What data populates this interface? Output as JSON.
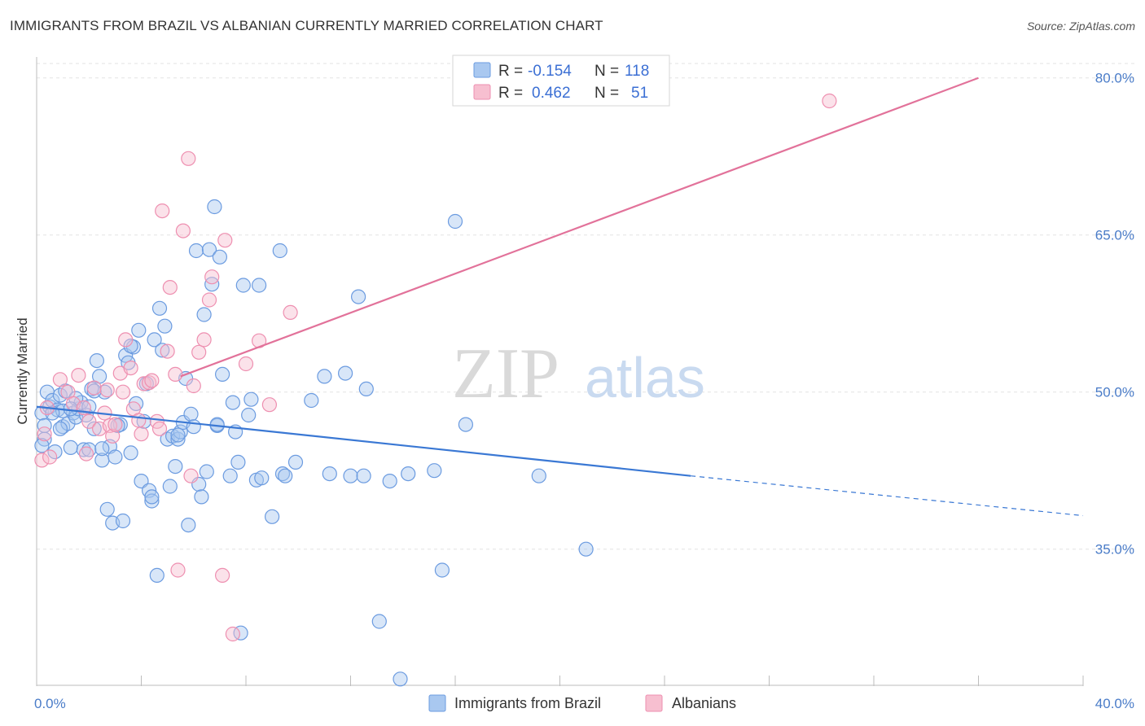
{
  "header": {
    "title": "IMMIGRANTS FROM BRAZIL VS ALBANIAN CURRENTLY MARRIED CORRELATION CHART",
    "source": "Source: ZipAtlas.com"
  },
  "watermark": {
    "part1": "ZIP",
    "part2": "atlas"
  },
  "colors": {
    "blue_fill": "#a9c8f0",
    "blue_stroke": "#6b9be0",
    "blue_line": "#3a78d4",
    "pink_fill": "#f7bfd0",
    "pink_stroke": "#ee8fb0",
    "pink_line": "#e2729a",
    "grid": "#e3e3e3",
    "axis_text": "#4a7cc8"
  },
  "legend_top": {
    "rows": [
      {
        "r_label": "R =",
        "r_value": "-0.154",
        "n_label": "N =",
        "n_value": "118"
      },
      {
        "r_label": "R =",
        "r_value": "0.462",
        "n_label": "N =",
        "n_value": "51"
      }
    ]
  },
  "chart_data": {
    "type": "scatter",
    "title": "IMMIGRANTS FROM BRAZIL VS ALBANIAN CURRENTLY MARRIED CORRELATION CHART",
    "xlabel": "",
    "ylabel": "Currently Married",
    "xlim": [
      0,
      40
    ],
    "ylim": [
      22,
      82
    ],
    "x_tick_labels": [
      "0.0%",
      "40.0%"
    ],
    "y_ticks": [
      35,
      50,
      65,
      80
    ],
    "y_tick_labels": [
      "35.0%",
      "50.0%",
      "65.0%",
      "80.0%"
    ],
    "grid": true,
    "legend_position": "bottom-center",
    "series": [
      {
        "name": "Immigrants from Brazil",
        "color": "#a9c8f0",
        "trend": {
          "x": [
            0,
            25
          ],
          "y": [
            48.6,
            42.0
          ],
          "dashed_to": [
            40,
            38.2
          ]
        },
        "points": [
          [
            0.2,
            48.0
          ],
          [
            0.3,
            45.5
          ],
          [
            0.3,
            46.8
          ],
          [
            0.4,
            50.0
          ],
          [
            0.5,
            48.6
          ],
          [
            0.6,
            49.2
          ],
          [
            0.7,
            44.3
          ],
          [
            0.8,
            48.3
          ],
          [
            0.9,
            49.7
          ],
          [
            1.0,
            46.7
          ],
          [
            1.1,
            50.1
          ],
          [
            1.2,
            47.0
          ],
          [
            1.3,
            44.7
          ],
          [
            1.4,
            48.0
          ],
          [
            1.5,
            47.6
          ],
          [
            1.6,
            48.4
          ],
          [
            1.7,
            49.0
          ],
          [
            1.8,
            44.5
          ],
          [
            1.9,
            47.8
          ],
          [
            2.0,
            44.5
          ],
          [
            2.1,
            50.3
          ],
          [
            2.2,
            46.5
          ],
          [
            2.3,
            53.0
          ],
          [
            2.4,
            51.5
          ],
          [
            2.5,
            43.5
          ],
          [
            2.6,
            50.0
          ],
          [
            2.7,
            38.8
          ],
          [
            2.8,
            44.8
          ],
          [
            2.9,
            37.5
          ],
          [
            3.0,
            43.8
          ],
          [
            3.2,
            46.9
          ],
          [
            3.3,
            37.7
          ],
          [
            3.4,
            53.5
          ],
          [
            3.5,
            52.8
          ],
          [
            3.6,
            44.2
          ],
          [
            3.7,
            54.3
          ],
          [
            3.8,
            48.9
          ],
          [
            3.9,
            55.9
          ],
          [
            4.0,
            41.5
          ],
          [
            4.1,
            47.2
          ],
          [
            4.2,
            50.8
          ],
          [
            4.3,
            40.6
          ],
          [
            4.4,
            39.6
          ],
          [
            4.5,
            55.0
          ],
          [
            4.6,
            32.5
          ],
          [
            4.7,
            58.0
          ],
          [
            4.8,
            54.0
          ],
          [
            4.9,
            56.3
          ],
          [
            5.0,
            45.5
          ],
          [
            5.1,
            41.0
          ],
          [
            5.2,
            45.8
          ],
          [
            5.3,
            42.9
          ],
          [
            5.4,
            45.5
          ],
          [
            5.5,
            46.2
          ],
          [
            5.6,
            47.1
          ],
          [
            5.7,
            51.3
          ],
          [
            5.8,
            37.3
          ],
          [
            5.9,
            47.9
          ],
          [
            6.0,
            46.7
          ],
          [
            6.1,
            63.5
          ],
          [
            6.2,
            41.2
          ],
          [
            6.3,
            40.0
          ],
          [
            6.4,
            57.4
          ],
          [
            6.5,
            42.4
          ],
          [
            6.6,
            63.6
          ],
          [
            6.7,
            60.3
          ],
          [
            6.8,
            67.7
          ],
          [
            6.9,
            46.8
          ],
          [
            7.0,
            62.9
          ],
          [
            7.1,
            51.7
          ],
          [
            7.4,
            42.0
          ],
          [
            7.5,
            49.0
          ],
          [
            7.6,
            46.2
          ],
          [
            7.7,
            43.3
          ],
          [
            7.8,
            27.0
          ],
          [
            7.9,
            60.2
          ],
          [
            8.1,
            47.8
          ],
          [
            8.2,
            49.3
          ],
          [
            8.4,
            41.6
          ],
          [
            8.5,
            60.2
          ],
          [
            8.6,
            41.8
          ],
          [
            9.0,
            38.1
          ],
          [
            9.3,
            63.5
          ],
          [
            9.4,
            42.2
          ],
          [
            9.5,
            42.0
          ],
          [
            9.9,
            43.3
          ],
          [
            10.5,
            49.2
          ],
          [
            11.0,
            51.5
          ],
          [
            11.2,
            42.2
          ],
          [
            11.8,
            51.8
          ],
          [
            12.0,
            42.0
          ],
          [
            12.3,
            59.1
          ],
          [
            12.5,
            42.0
          ],
          [
            12.6,
            50.3
          ],
          [
            13.1,
            28.1
          ],
          [
            13.5,
            41.5
          ],
          [
            13.9,
            22.6
          ],
          [
            14.2,
            42.2
          ],
          [
            15.2,
            42.5
          ],
          [
            15.5,
            33.0
          ],
          [
            16.0,
            66.3
          ],
          [
            16.4,
            46.9
          ],
          [
            19.2,
            42.0
          ],
          [
            21.0,
            35.0
          ],
          [
            1.0,
            48.2
          ],
          [
            2.0,
            48.6
          ],
          [
            0.9,
            46.5
          ],
          [
            1.5,
            49.4
          ],
          [
            3.6,
            54.4
          ],
          [
            5.4,
            45.9
          ],
          [
            4.4,
            40.0
          ],
          [
            6.9,
            46.9
          ],
          [
            2.5,
            44.6
          ],
          [
            3.1,
            46.8
          ],
          [
            1.3,
            48.4
          ],
          [
            2.2,
            50.1
          ],
          [
            0.6,
            48.0
          ],
          [
            0.2,
            44.9
          ]
        ]
      },
      {
        "name": "Albanians",
        "color": "#f7bfd0",
        "trend": {
          "x": [
            5.5,
            36.0
          ],
          "y": [
            51.5,
            80.0
          ]
        },
        "points": [
          [
            0.2,
            43.5
          ],
          [
            0.3,
            46.0
          ],
          [
            0.4,
            48.5
          ],
          [
            0.5,
            43.8
          ],
          [
            0.9,
            51.2
          ],
          [
            1.2,
            50.0
          ],
          [
            1.4,
            48.9
          ],
          [
            1.6,
            51.6
          ],
          [
            1.8,
            48.5
          ],
          [
            1.9,
            44.1
          ],
          [
            2.0,
            47.2
          ],
          [
            2.2,
            50.4
          ],
          [
            2.4,
            46.5
          ],
          [
            2.6,
            48.0
          ],
          [
            2.7,
            50.2
          ],
          [
            2.8,
            46.8
          ],
          [
            2.9,
            45.8
          ],
          [
            3.0,
            46.9
          ],
          [
            3.2,
            51.8
          ],
          [
            3.3,
            50.0
          ],
          [
            3.4,
            55.0
          ],
          [
            3.6,
            52.3
          ],
          [
            3.7,
            48.4
          ],
          [
            3.9,
            47.3
          ],
          [
            4.0,
            46.0
          ],
          [
            4.1,
            50.8
          ],
          [
            4.3,
            50.9
          ],
          [
            4.4,
            51.1
          ],
          [
            4.6,
            47.2
          ],
          [
            4.7,
            46.5
          ],
          [
            4.8,
            67.3
          ],
          [
            5.0,
            53.9
          ],
          [
            5.1,
            60.0
          ],
          [
            5.3,
            51.7
          ],
          [
            5.4,
            33.0
          ],
          [
            5.6,
            65.4
          ],
          [
            5.8,
            72.3
          ],
          [
            5.9,
            42.0
          ],
          [
            6.0,
            50.6
          ],
          [
            6.2,
            53.8
          ],
          [
            6.4,
            55.0
          ],
          [
            6.6,
            58.8
          ],
          [
            6.7,
            61.0
          ],
          [
            7.1,
            32.5
          ],
          [
            7.2,
            64.5
          ],
          [
            7.5,
            26.9
          ],
          [
            8.0,
            52.7
          ],
          [
            8.5,
            54.9
          ],
          [
            8.9,
            48.8
          ],
          [
            9.7,
            57.6
          ],
          [
            30.3,
            77.8
          ]
        ]
      }
    ]
  },
  "legend_bottom": {
    "items": [
      {
        "label": "Immigrants from Brazil"
      },
      {
        "label": "Albanians"
      }
    ]
  }
}
